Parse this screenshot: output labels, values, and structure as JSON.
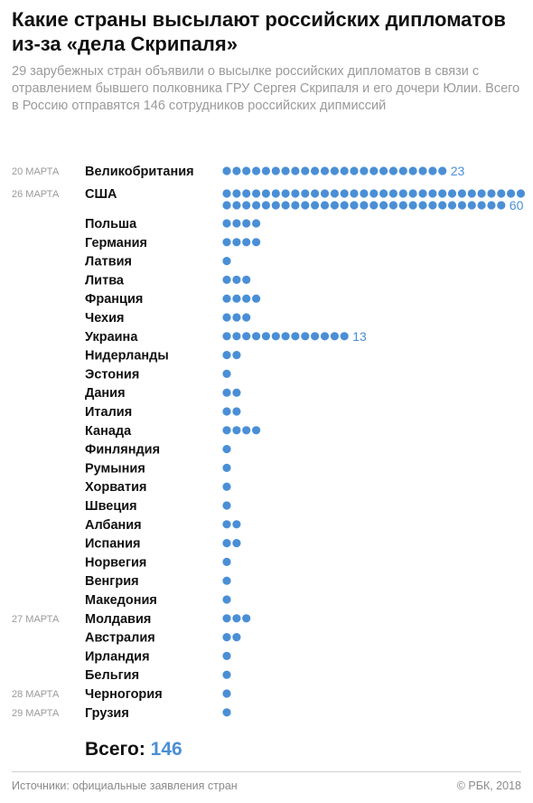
{
  "title": "Какие страны высылают российских дипломатов из-за «дела Скрипаля»",
  "subtitle": "29 зарубежных стран объявили о высылке российских дипломатов в связи с отравлением бывшего полковника ГРУ Сергея Скрипаля и его дочери Юлии. Всего в Россию отправятся 146 сотрудников российских дипмиссий",
  "colors": {
    "dot": "#4a8fd6",
    "label": "#111111",
    "date": "#9a9a9a",
    "value": "#4a8fd6"
  },
  "chart_data": {
    "type": "bar",
    "categories": [
      "Великобритания",
      "США",
      "Польша",
      "Германия",
      "Латвия",
      "Литва",
      "Франция",
      "Чехия",
      "Украина",
      "Нидерланды",
      "Эстония",
      "Дания",
      "Италия",
      "Канада",
      "Финляндия",
      "Румыния",
      "Хорватия",
      "Швеция",
      "Албания",
      "Испания",
      "Норвегия",
      "Венгрия",
      "Македония",
      "Молдавия",
      "Австралия",
      "Ирландия",
      "Бельгия",
      "Черногория",
      "Грузия"
    ],
    "values": [
      23,
      60,
      4,
      4,
      1,
      3,
      4,
      3,
      13,
      2,
      1,
      2,
      2,
      4,
      1,
      1,
      1,
      1,
      2,
      2,
      1,
      1,
      1,
      3,
      2,
      1,
      1,
      1,
      1
    ],
    "dates": [
      "20 МАРТА",
      "26 МАРТА",
      "",
      "",
      "",
      "",
      "",
      "",
      "",
      "",
      "",
      "",
      "",
      "",
      "",
      "",
      "",
      "",
      "",
      "",
      "",
      "",
      "",
      "27 МАРТА",
      "",
      "",
      "",
      "28 МАРТА",
      "29 МАРТА"
    ],
    "value_labels": [
      "23",
      "60",
      "",
      "",
      "",
      "",
      "",
      "",
      "13",
      "",
      "",
      "",
      "",
      "",
      "",
      "",
      "",
      "",
      "",
      "",
      "",
      "",
      "",
      "",
      "",
      "",
      "",
      "",
      ""
    ]
  },
  "total": {
    "label": "Всего:",
    "value": "146"
  },
  "footer": {
    "source": "Источники: официальные заявления стран",
    "copyright": "© РБК, 2018"
  }
}
